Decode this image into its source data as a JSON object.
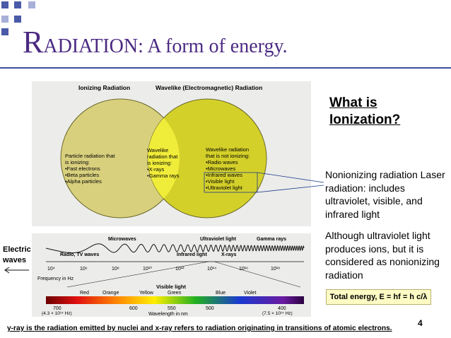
{
  "slide": {
    "title_first_letter": "R",
    "title_rest": "ADIATION: A form of energy.",
    "page_number": "4"
  },
  "venn": {
    "left_header": "Ionizing Radiation",
    "right_header": "Wavelike (Electromagnetic) Radiation",
    "left_lines": [
      "Particle radiation that",
      "is ionizing:",
      "•Fast electrons",
      "•Beta particles",
      "•Alpha particles"
    ],
    "center_lines": [
      "Wavelike",
      "radiation that",
      "is ionizing:",
      "•X-rays",
      "•Gamma rays"
    ],
    "right_lines": [
      "Wavelike radiation",
      "that is not ionizing:",
      "•Radio waves",
      "•Microwaves",
      "•Infrared waves",
      "•Visible light",
      "•Ultraviolet light"
    ]
  },
  "spectrum": {
    "band_labels": [
      "Microwaves",
      "Ultraviolet light",
      "Gamma rays",
      "Radio, TV waves",
      "Infrared light",
      "X-rays"
    ],
    "freq_ticks": [
      "10⁴",
      "10⁶",
      "10⁸",
      "10¹⁰",
      "10¹²",
      "10¹⁴",
      "10¹⁶",
      "10¹⁸"
    ],
    "freq_axis_label": "Frequency in Hz",
    "visible_title": "Visible light",
    "color_labels": [
      "Red",
      "Orange",
      "Yellow",
      "Green",
      "Blue",
      "Violet"
    ],
    "wave_ticks": [
      "700",
      "600",
      "550",
      "500",
      "400"
    ],
    "wave_low_note": "(4.3 × 10¹⁴ Hz)",
    "wave_high_note": "(7.5 × 10¹⁴ Hz)",
    "wave_axis_label": "Wavelength in nm"
  },
  "side": {
    "question": "What is Ionization?",
    "nonionizing": "Nonionizing radiation Laser radiation: includes ultraviolet, visible, and infrared light",
    "although": "Although ultraviolet light produces ions, but it is considered as nonionizing radiation",
    "energy": "Total energy, E = hf = h c/λ",
    "electric_line1": "Electric",
    "electric_line2": "waves"
  },
  "footnote": "γ-ray is the radiation emitted by nuclei and x-ray refers to radiation originating in transitions of atomic electrons.",
  "colors": {
    "title": "#4b2a82",
    "accent_square": "#4a5aa8",
    "left_circle": "#d9d07e",
    "right_circle": "#d4d02a",
    "overlap": "#f0ec3a"
  }
}
